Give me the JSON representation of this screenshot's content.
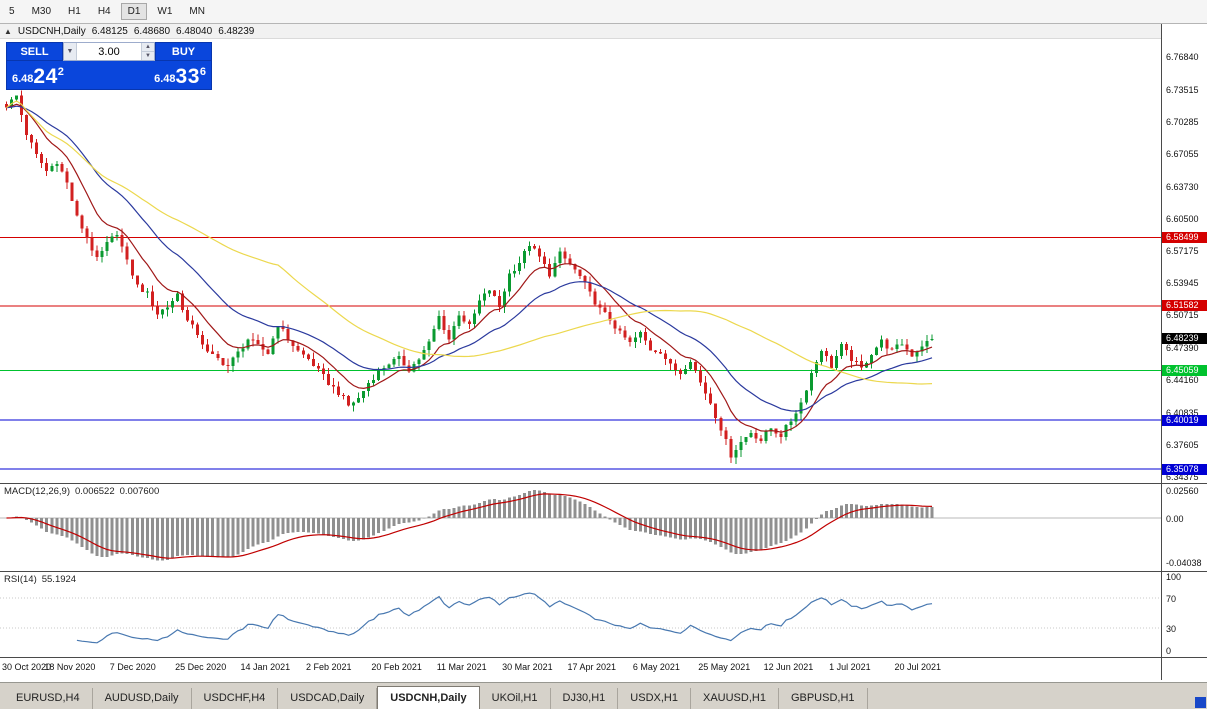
{
  "toolbar": {
    "timeframes": [
      "5",
      "M30",
      "H1",
      "H4",
      "D1",
      "W1",
      "MN"
    ],
    "active": "D1"
  },
  "chart": {
    "title": {
      "collapse_icon": "▲",
      "symbol": "USDCNH,Daily",
      "open": "6.48125",
      "high": "6.48680",
      "low": "6.48040",
      "close": "6.48239"
    },
    "one_click": {
      "sell_label": "SELL",
      "buy_label": "BUY",
      "volume": "3.00",
      "sell_price": {
        "small": "6.48",
        "big": "24",
        "sup": "2"
      },
      "buy_price": {
        "small": "6.48",
        "big": "33",
        "sup": "6"
      },
      "spin_up": "▲",
      "spin_down": "▼",
      "mini_arrow": "▼"
    },
    "colors": {
      "up": "#0a9a30",
      "down": "#d22020",
      "level_red": "#d40000",
      "level_green": "#00c22e",
      "level_blue": "#0000d4",
      "current_badge": "#000000",
      "macd_hist": "#909090",
      "macd_signal": "#c00000",
      "rsi_line": "#4878b0",
      "widget_blue": "#0a46dc"
    },
    "levels": [
      {
        "price": 6.58499,
        "label": "6.58499",
        "color": "#d40000"
      },
      {
        "price": 6.51582,
        "label": "6.51582",
        "color": "#d40000"
      },
      {
        "price": 6.45059,
        "label": "6.45059",
        "color": "#00c22e"
      },
      {
        "price": 6.40019,
        "label": "6.40019",
        "color": "#0000d4"
      },
      {
        "price": 6.35078,
        "label": "6.35078",
        "color": "#0000d4"
      }
    ],
    "current_price": {
      "price": 6.48239,
      "label": "6.48239",
      "bg": "#000000"
    },
    "price_axis_labels": [
      "6.76840",
      "6.73515",
      "6.70285",
      "6.67055",
      "6.63730",
      "6.60500",
      "6.57175",
      "6.53945",
      "6.50715",
      "6.47390",
      "6.44160",
      "6.40835",
      "6.37605",
      "6.34375"
    ]
  },
  "chart_data": {
    "type": "candlestick",
    "symbol": "USDCNH",
    "timeframe": "Daily",
    "title": "USDCNH,Daily",
    "price_axis_visible_range": [
      6.3356,
      6.8008
    ],
    "ohlc_current": {
      "open": 6.48125,
      "high": 6.4868,
      "low": 6.4804,
      "close": 6.48239
    },
    "x_labels": [
      "30 Oct 2020",
      "18 Nov 2020",
      "7 Dec 2020",
      "25 Dec 2020",
      "14 Jan 2021",
      "2 Feb 2021",
      "20 Feb 2021",
      "11 Mar 2021",
      "30 Mar 2021",
      "17 Apr 2021",
      "6 May 2021",
      "25 May 2021",
      "12 Jun 2021",
      "1 Jul 2021",
      "20 Jul 2021"
    ],
    "candles_per_label": 13,
    "close_path_step": 2,
    "close_path": [
      6.718,
      6.728,
      6.69,
      6.668,
      6.652,
      6.662,
      6.64,
      6.605,
      6.585,
      6.562,
      6.578,
      6.59,
      6.56,
      6.536,
      6.528,
      6.508,
      6.515,
      6.528,
      6.5,
      6.488,
      6.468,
      6.462,
      6.455,
      6.468,
      6.482,
      6.475,
      6.468,
      6.498,
      6.482,
      6.47,
      6.462,
      6.45,
      6.438,
      6.428,
      6.415,
      6.422,
      6.438,
      6.45,
      6.458,
      6.462,
      6.452,
      6.462,
      6.478,
      6.505,
      6.482,
      6.508,
      6.495,
      6.52,
      6.532,
      6.515,
      6.548,
      6.56,
      6.578,
      6.565,
      6.548,
      6.568,
      6.558,
      6.545,
      6.528,
      6.512,
      6.502,
      6.488,
      6.478,
      6.488,
      6.472,
      6.47,
      6.455,
      6.448,
      6.462,
      6.438,
      6.418,
      6.392,
      6.365,
      6.378,
      6.388,
      6.38,
      6.392,
      6.385,
      6.4,
      6.418,
      6.448,
      6.472,
      6.455,
      6.475,
      6.462,
      6.452,
      6.468,
      6.48,
      6.47,
      6.478,
      6.466,
      6.476,
      6.482
    ],
    "horizontal_levels": [
      6.58499,
      6.51582,
      6.45059,
      6.40019,
      6.35078
    ],
    "moving_averages": [
      {
        "name": "fast",
        "type": "ema",
        "period": 10,
        "color": "#a01818"
      },
      {
        "name": "mid",
        "type": "ema",
        "period": 25,
        "color": "#2b3a9e"
      },
      {
        "name": "slow",
        "type": "sma",
        "period": 55,
        "color": "#ecd84e"
      }
    ],
    "macd": {
      "label": "MACD(12,26,9)",
      "main_value": "0.006522",
      "signal_value": "0.007600",
      "params": [
        12,
        26,
        9
      ],
      "axis_labels": [
        "0.02560",
        "0.00",
        "-0.04038"
      ],
      "axis_values": [
        0.0256,
        0.0,
        -0.04038
      ]
    },
    "rsi": {
      "label": "RSI(14)",
      "value": "55.1924",
      "period": 14,
      "axis_labels": [
        "100",
        "70",
        "30",
        "0"
      ],
      "axis_values": [
        100,
        70,
        30,
        0
      ],
      "level_lines": [
        70,
        30
      ]
    }
  },
  "bottom_tabs": {
    "tabs": [
      {
        "label": "EURUSD,H4",
        "active": false
      },
      {
        "label": "AUDUSD,Daily",
        "active": false
      },
      {
        "label": "USDCHF,H4",
        "active": false
      },
      {
        "label": "USDCAD,Daily",
        "active": false
      },
      {
        "label": "USDCNH,Daily",
        "active": true
      },
      {
        "label": "UKOil,H1",
        "active": false
      },
      {
        "label": "DJ30,H1",
        "active": false
      },
      {
        "label": "USDX,H1",
        "active": false
      },
      {
        "label": "XAUUSD,H1",
        "active": false
      },
      {
        "label": "GBPUSD,H1",
        "active": false
      }
    ]
  }
}
